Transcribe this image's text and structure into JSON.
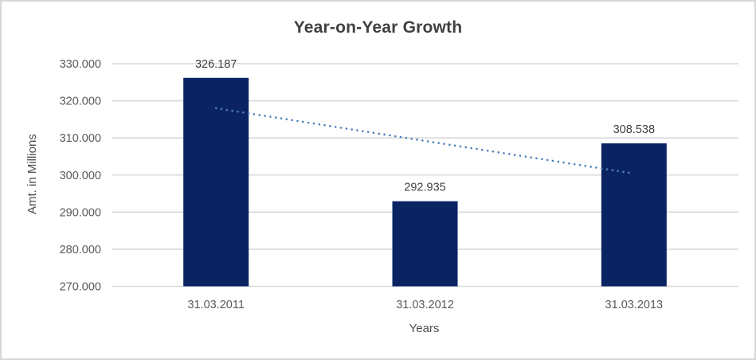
{
  "chart_data": {
    "type": "bar",
    "title": "Year-on-Year Growth",
    "categories": [
      "31.03.2011",
      "31.03.2012",
      "31.03.2013"
    ],
    "values": [
      326.187,
      292.935,
      308.538
    ],
    "data_labels": [
      "326.187",
      "292.935",
      "308.538"
    ],
    "xlabel": "Years",
    "ylabel": "Amt. in Millions",
    "y_ticks": [
      "330.000",
      "320.000",
      "310.000",
      "300.000",
      "290.000",
      "280.000",
      "270.000"
    ],
    "ylim": [
      270,
      330
    ],
    "grid": true,
    "legend": "none",
    "trendline": {
      "type": "linear",
      "style": "dotted",
      "start_value": 318.0,
      "end_value": 300.4
    },
    "colors": {
      "bar": "#0a2463",
      "trendline": "#4e81bd",
      "gridline": "#d9d9d9",
      "tick_text": "#595959",
      "title_text": "#404040",
      "data_label_text": "#404040",
      "axis_title_text": "#4d4d4d",
      "frame_border": "#d7d7d7",
      "background": "#ffffff"
    }
  }
}
